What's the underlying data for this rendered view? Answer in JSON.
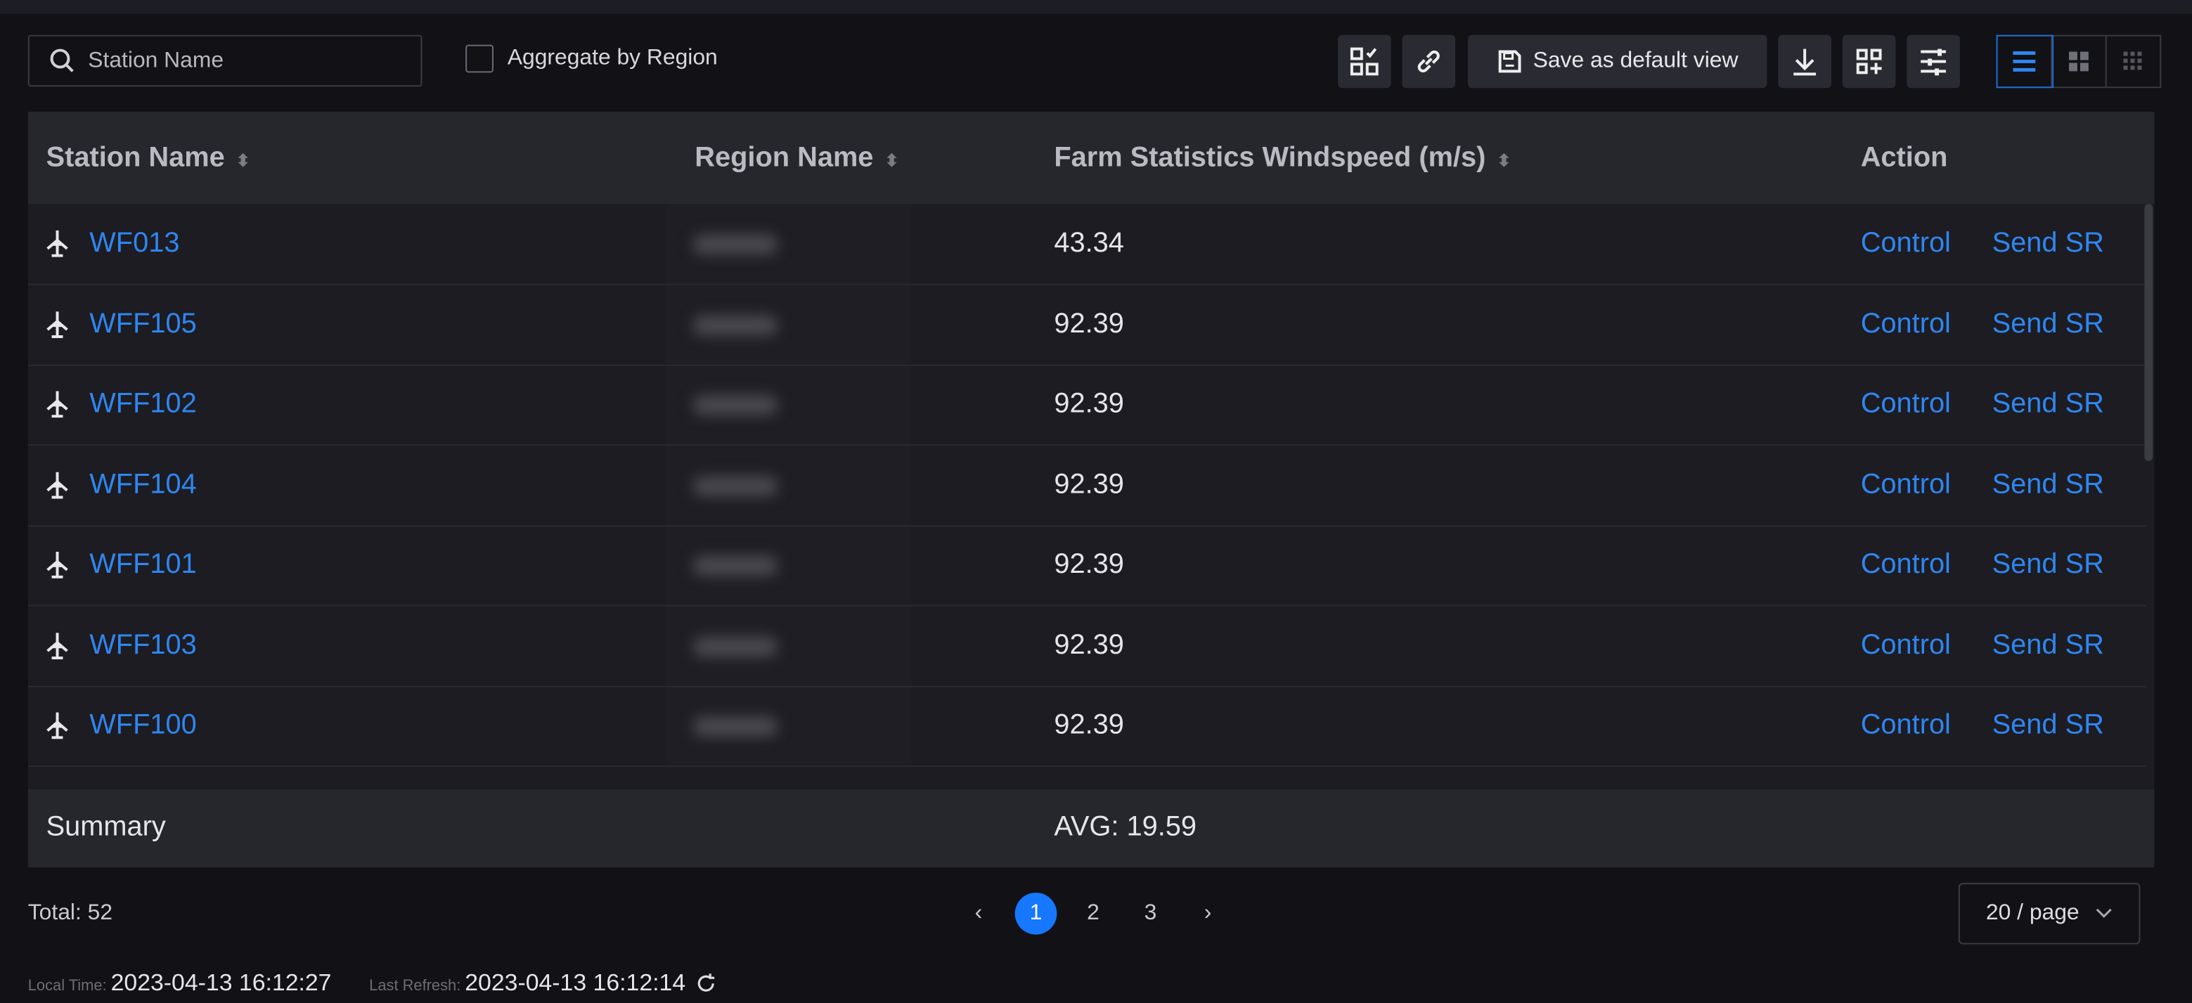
{
  "toolbar": {
    "search_placeholder": "Station Name",
    "aggregate_label": "Aggregate by Region",
    "aggregate_checked": false,
    "save_default_label": "Save as default view",
    "icons": [
      "select-columns-icon",
      "link-icon",
      "save-icon",
      "download-icon",
      "add-widget-icon",
      "filter-settings-icon"
    ],
    "view_modes": [
      "list-view-icon",
      "grid-view-icon",
      "compact-grid-view-icon"
    ],
    "active_view": "list",
    "accent": "#2f86f0"
  },
  "table": {
    "columns": [
      "Station Name",
      "Region Name",
      "Farm Statistics Windspeed (m/s)",
      "Action"
    ],
    "rows": [
      {
        "station": "WF013",
        "windspeed": "43.34"
      },
      {
        "station": "WFF105",
        "windspeed": "92.39"
      },
      {
        "station": "WFF102",
        "windspeed": "92.39"
      },
      {
        "station": "WFF104",
        "windspeed": "92.39"
      },
      {
        "station": "WFF101",
        "windspeed": "92.39"
      },
      {
        "station": "WFF103",
        "windspeed": "92.39"
      },
      {
        "station": "WFF100",
        "windspeed": "92.39"
      }
    ],
    "actions": {
      "control": "Control",
      "send_sr": "Send SR"
    },
    "summary_label": "Summary",
    "summary_value": "AVG: 19.59"
  },
  "footer": {
    "total": "Total: 52",
    "pages": [
      "1",
      "2",
      "3"
    ],
    "current_page": 1,
    "page_size": "20 / page",
    "local_time_label": "Local Time:",
    "local_time": "2023-04-13 16:12:27",
    "last_refresh_label": "Last Refresh:",
    "last_refresh": "2023-04-13 16:12:14"
  }
}
